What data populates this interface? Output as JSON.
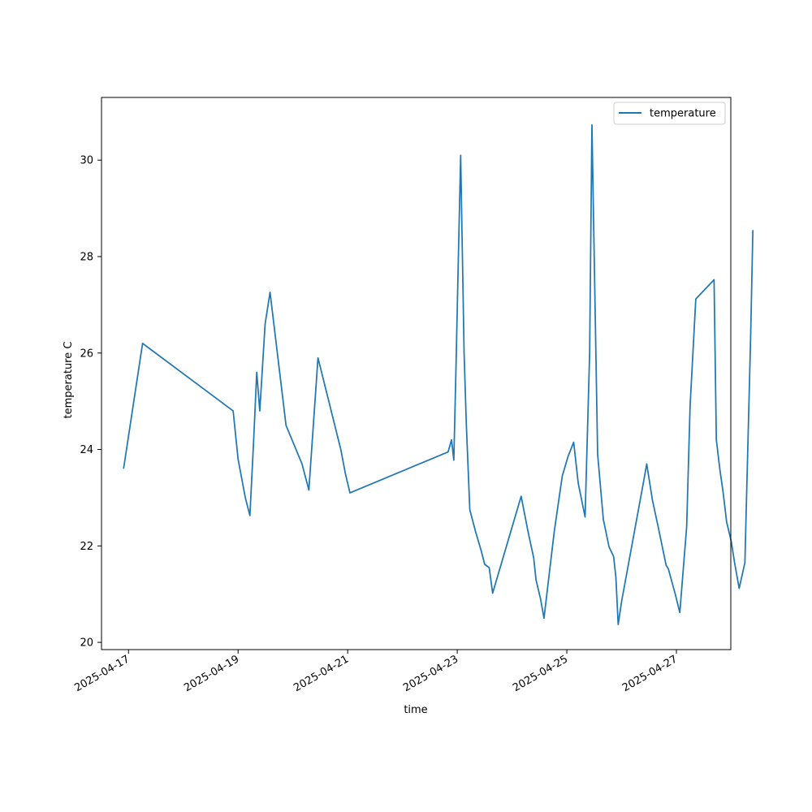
{
  "chart_data": {
    "type": "line",
    "xlabel": "time",
    "ylabel": "temperature C",
    "x_ticks": [
      "2025-04-17",
      "2025-04-19",
      "2025-04-21",
      "2025-04-23",
      "2025-04-25",
      "2025-04-27"
    ],
    "y_ticks": [
      20,
      22,
      24,
      26,
      28,
      30
    ],
    "xlim": [
      "2025-04-16T12:10",
      "2025-04-27T23:50"
    ],
    "ylim": [
      19.85,
      31.3
    ],
    "grid": false,
    "legend": {
      "position": "top-right"
    },
    "series": [
      {
        "name": "temperature",
        "color": "#1f77b4",
        "points": [
          [
            "2025-04-16T21:50",
            23.6
          ],
          [
            "2025-04-17T06:10",
            26.2
          ],
          [
            "2025-04-18T21:50",
            24.8
          ],
          [
            "2025-04-19T00:00",
            23.8
          ],
          [
            "2025-04-19T03:10",
            23.0
          ],
          [
            "2025-04-19T05:10",
            22.63
          ],
          [
            "2025-04-19T06:50",
            24.2
          ],
          [
            "2025-04-19T08:10",
            25.6
          ],
          [
            "2025-04-19T09:30",
            24.8
          ],
          [
            "2025-04-19T11:50",
            26.6
          ],
          [
            "2025-04-19T14:00",
            27.26
          ],
          [
            "2025-04-19T21:00",
            24.5
          ],
          [
            "2025-04-20T04:00",
            23.7
          ],
          [
            "2025-04-20T07:00",
            23.16
          ],
          [
            "2025-04-20T11:00",
            25.9
          ],
          [
            "2025-04-20T21:00",
            24.0
          ],
          [
            "2025-04-20T23:00",
            23.5
          ],
          [
            "2025-04-21T01:00",
            23.1
          ],
          [
            "2025-04-22T20:00",
            23.95
          ],
          [
            "2025-04-22T21:30",
            24.2
          ],
          [
            "2025-04-22T22:30",
            23.78
          ],
          [
            "2025-04-22T23:30",
            25.8
          ],
          [
            "2025-04-23T00:30",
            28.0
          ],
          [
            "2025-04-23T01:30",
            30.1
          ],
          [
            "2025-04-23T03:00",
            26.0
          ],
          [
            "2025-04-23T04:00",
            24.5
          ],
          [
            "2025-04-23T05:30",
            22.75
          ],
          [
            "2025-04-23T08:00",
            22.3
          ],
          [
            "2025-04-23T10:30",
            21.9
          ],
          [
            "2025-04-23T12:00",
            21.62
          ],
          [
            "2025-04-23T14:00",
            21.55
          ],
          [
            "2025-04-23T15:30",
            21.02
          ],
          [
            "2025-04-24T04:00",
            23.03
          ],
          [
            "2025-04-24T07:00",
            22.3
          ],
          [
            "2025-04-24T09:30",
            21.75
          ],
          [
            "2025-04-24T10:30",
            21.3
          ],
          [
            "2025-04-24T12:30",
            20.9
          ],
          [
            "2025-04-24T14:00",
            20.5
          ],
          [
            "2025-04-24T18:30",
            22.3
          ],
          [
            "2025-04-24T22:00",
            23.45
          ],
          [
            "2025-04-25T00:30",
            23.85
          ],
          [
            "2025-04-25T03:00",
            24.15
          ],
          [
            "2025-04-25T05:00",
            23.3
          ],
          [
            "2025-04-25T08:00",
            22.6
          ],
          [
            "2025-04-25T10:00",
            26.0
          ],
          [
            "2025-04-25T11:00",
            30.73
          ],
          [
            "2025-04-25T13:30",
            23.9
          ],
          [
            "2025-04-25T16:00",
            22.55
          ],
          [
            "2025-04-25T18:30",
            21.98
          ],
          [
            "2025-04-25T20:30",
            21.78
          ],
          [
            "2025-04-25T21:30",
            21.35
          ],
          [
            "2025-04-25T22:30",
            20.37
          ],
          [
            "2025-04-26T00:00",
            20.85
          ],
          [
            "2025-04-26T09:30",
            23.3
          ],
          [
            "2025-04-26T11:00",
            23.7
          ],
          [
            "2025-04-26T13:30",
            22.95
          ],
          [
            "2025-04-26T16:00",
            22.4
          ],
          [
            "2025-04-26T19:30",
            21.6
          ],
          [
            "2025-04-26T20:30",
            21.52
          ],
          [
            "2025-04-26T23:30",
            21.0
          ],
          [
            "2025-04-27T01:30",
            20.62
          ],
          [
            "2025-04-27T04:30",
            22.4
          ],
          [
            "2025-04-27T06:00",
            24.9
          ],
          [
            "2025-04-27T08:30",
            27.12
          ],
          [
            "2025-04-27T16:30",
            27.52
          ],
          [
            "2025-04-27T17:30",
            24.2
          ],
          [
            "2025-04-27T19:00",
            23.6
          ],
          [
            "2025-04-27T20:30",
            23.1
          ],
          [
            "2025-04-27T22:00",
            22.5
          ],
          [
            "2025-04-28T00:00",
            22.1
          ],
          [
            "2025-04-28T01:30",
            21.65
          ],
          [
            "2025-04-28T03:30",
            21.12
          ],
          [
            "2025-04-28T06:00",
            21.65
          ],
          [
            "2025-04-28T08:30",
            26.3
          ],
          [
            "2025-04-28T09:30",
            28.55
          ]
        ]
      }
    ]
  }
}
